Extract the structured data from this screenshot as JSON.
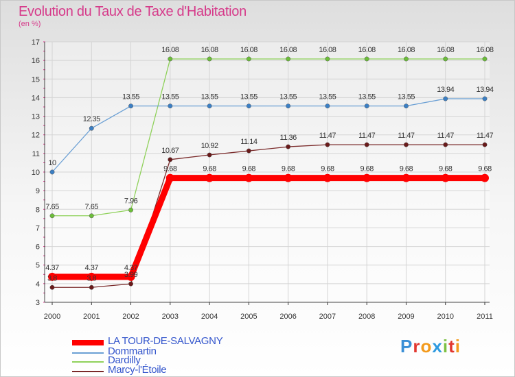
{
  "header": {
    "title": "Evolution du Taux de Taxe d'Habitation",
    "subtitle": "(en %)"
  },
  "brand": {
    "text": "Proxiti",
    "letters": [
      "P",
      "r",
      "o",
      "x",
      "i",
      "t",
      "i"
    ],
    "colors": [
      "#3a8fd6",
      "#e2372f",
      "#f39a1c",
      "#2f9be0",
      "#7cc142",
      "#e2372f",
      "#f39a1c"
    ]
  },
  "chart_data": {
    "type": "line",
    "title": "Evolution du Taux de Taxe d'Habitation",
    "ylabel": "(en %)",
    "xlabel": "",
    "x": [
      "2000",
      "2001",
      "2002",
      "2003",
      "2004",
      "2005",
      "2006",
      "2007",
      "2008",
      "2009",
      "2010",
      "2011"
    ],
    "ylim": [
      3,
      17
    ],
    "yticks": [
      3,
      4,
      5,
      6,
      7,
      8,
      9,
      10,
      11,
      12,
      13,
      14,
      15,
      16,
      17
    ],
    "grid": true,
    "legend_position": "bottom",
    "series": [
      {
        "name": "LA TOUR-DE-SALVAGNY",
        "color": "#ff0000",
        "marker_color": "#ff0000",
        "values": [
          4.37,
          4.37,
          4.37,
          9.68,
          9.68,
          9.68,
          9.68,
          9.68,
          9.68,
          9.68,
          9.68,
          9.68
        ],
        "labels": [
          "4.37",
          "4.37",
          "4.37",
          "9.68",
          "9.68",
          "9.68",
          "9.68",
          "9.68",
          "9.68",
          "9.68",
          "9.68",
          "9.68"
        ]
      },
      {
        "name": "Dommartin",
        "color": "#6a9fd4",
        "marker_color": "#3b7fc4",
        "values": [
          10,
          12.35,
          13.55,
          13.55,
          13.55,
          13.55,
          13.55,
          13.55,
          13.55,
          13.55,
          13.94,
          13.94
        ],
        "labels": [
          "10",
          "12.35",
          "13.55",
          "13.55",
          "13.55",
          "13.55",
          "13.55",
          "13.55",
          "13.55",
          "13.55",
          "13.94",
          "13.94"
        ]
      },
      {
        "name": "Dardilly",
        "color": "#8fd15a",
        "marker_color": "#6cbd3a",
        "values": [
          7.65,
          7.65,
          7.96,
          16.08,
          16.08,
          16.08,
          16.08,
          16.08,
          16.08,
          16.08,
          16.08,
          16.08
        ],
        "labels": [
          "7.65",
          "7.65",
          "7.96",
          "16.08",
          "16.08",
          "16.08",
          "16.08",
          "16.08",
          "16.08",
          "16.08",
          "16.08",
          "16.08"
        ]
      },
      {
        "name": "Marcy-l'Étoile",
        "color": "#7a2a2a",
        "marker_color": "#6a1a1a",
        "values": [
          3.8,
          3.8,
          3.99,
          10.67,
          10.92,
          11.14,
          11.36,
          11.47,
          11.47,
          11.47,
          11.47,
          11.47
        ],
        "labels": [
          "3.8",
          "3.8",
          "3.99",
          "10.67",
          "10.92",
          "11.14",
          "11.36",
          "11.47",
          "11.47",
          "11.47",
          "11.47",
          "11.47"
        ]
      }
    ]
  }
}
